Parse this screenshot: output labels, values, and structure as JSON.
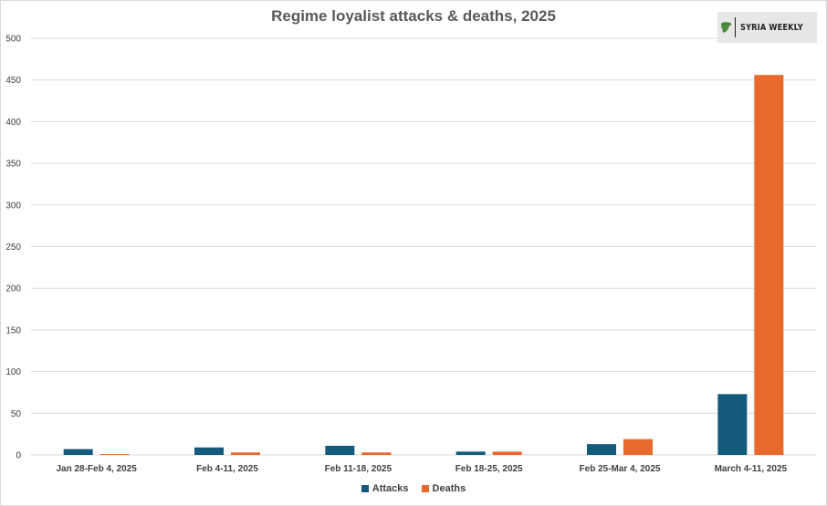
{
  "chart_data": {
    "type": "bar",
    "title": "Regime loyalist attacks & deaths, 2025",
    "categories": [
      "Jan 28-Feb 4, 2025",
      "Feb 4-11, 2025",
      "Feb 11-18, 2025",
      "Feb 18-25, 2025",
      "Feb 25-Mar 4, 2025",
      "March 4-11, 2025"
    ],
    "series": [
      {
        "name": "Attacks",
        "color": "#145a7c",
        "values": [
          7,
          9,
          11,
          4,
          13,
          73
        ]
      },
      {
        "name": "Deaths",
        "color": "#e7692c",
        "values": [
          1,
          3,
          3,
          4,
          19,
          456
        ]
      }
    ],
    "yticks": [
      0,
      50,
      100,
      150,
      200,
      250,
      300,
      350,
      400,
      450,
      500
    ],
    "ylim": [
      0,
      500
    ],
    "xlabel": "",
    "ylabel": "",
    "grid": true,
    "legend_position": "bottom"
  },
  "logo": {
    "text": "SYRIA WEEKLY",
    "map_color": "#4a8a3c",
    "icon": "syria-map-icon"
  },
  "colors": {
    "gridline": "#d9d9d9",
    "axis": "#d9d9d9",
    "text": "#404040"
  }
}
